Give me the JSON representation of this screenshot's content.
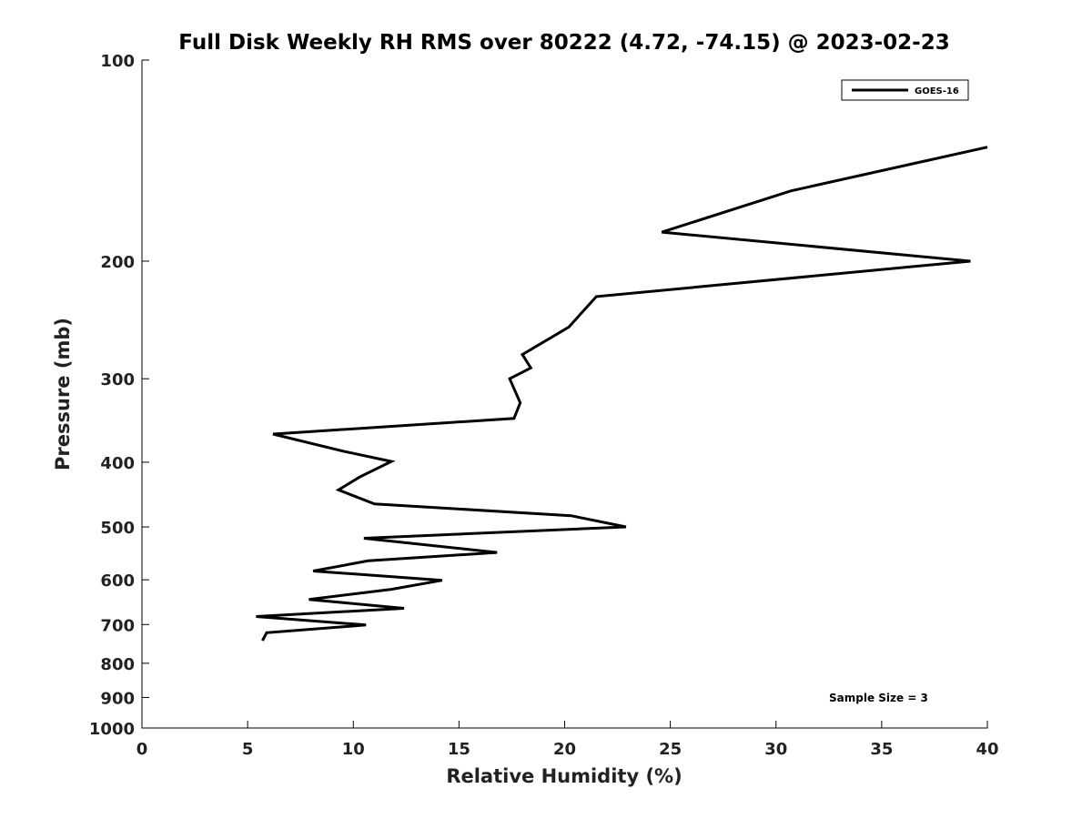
{
  "chart_data": {
    "type": "line",
    "title": "Full Disk Weekly RH RMS over 80222 (4.72, -74.15) @ 2023-02-23",
    "xlabel": "Relative Humidity (%)",
    "ylabel": "Pressure (mb)",
    "xlim": [
      0,
      40
    ],
    "ylim": [
      1000,
      100
    ],
    "yscale": "log",
    "x_ticks": [
      0,
      5,
      10,
      15,
      20,
      25,
      30,
      35,
      40
    ],
    "y_ticks": [
      100,
      200,
      300,
      400,
      500,
      600,
      700,
      800,
      900,
      1000
    ],
    "grid": false,
    "legend_position": "top-right",
    "series": [
      {
        "name": "GOES-16",
        "color": "#000000",
        "points": [
          {
            "x": 40.0,
            "y": 135
          },
          {
            "x": 30.7,
            "y": 157
          },
          {
            "x": 24.6,
            "y": 181
          },
          {
            "x": 39.2,
            "y": 200
          },
          {
            "x": 21.5,
            "y": 226
          },
          {
            "x": 20.2,
            "y": 251
          },
          {
            "x": 18.0,
            "y": 276
          },
          {
            "x": 18.4,
            "y": 289
          },
          {
            "x": 17.4,
            "y": 300
          },
          {
            "x": 17.9,
            "y": 326
          },
          {
            "x": 17.6,
            "y": 344
          },
          {
            "x": 6.2,
            "y": 363
          },
          {
            "x": 9.5,
            "y": 385
          },
          {
            "x": 11.8,
            "y": 399
          },
          {
            "x": 10.3,
            "y": 421
          },
          {
            "x": 9.3,
            "y": 440
          },
          {
            "x": 11.0,
            "y": 462
          },
          {
            "x": 20.3,
            "y": 481
          },
          {
            "x": 22.9,
            "y": 500
          },
          {
            "x": 10.5,
            "y": 520
          },
          {
            "x": 16.8,
            "y": 546
          },
          {
            "x": 10.7,
            "y": 562
          },
          {
            "x": 8.1,
            "y": 582
          },
          {
            "x": 14.2,
            "y": 601
          },
          {
            "x": 11.8,
            "y": 620
          },
          {
            "x": 7.9,
            "y": 642
          },
          {
            "x": 12.4,
            "y": 662
          },
          {
            "x": 5.4,
            "y": 681
          },
          {
            "x": 10.6,
            "y": 701
          },
          {
            "x": 5.9,
            "y": 720
          },
          {
            "x": 5.7,
            "y": 740
          }
        ]
      }
    ],
    "annotation": "Sample Size = 3"
  }
}
